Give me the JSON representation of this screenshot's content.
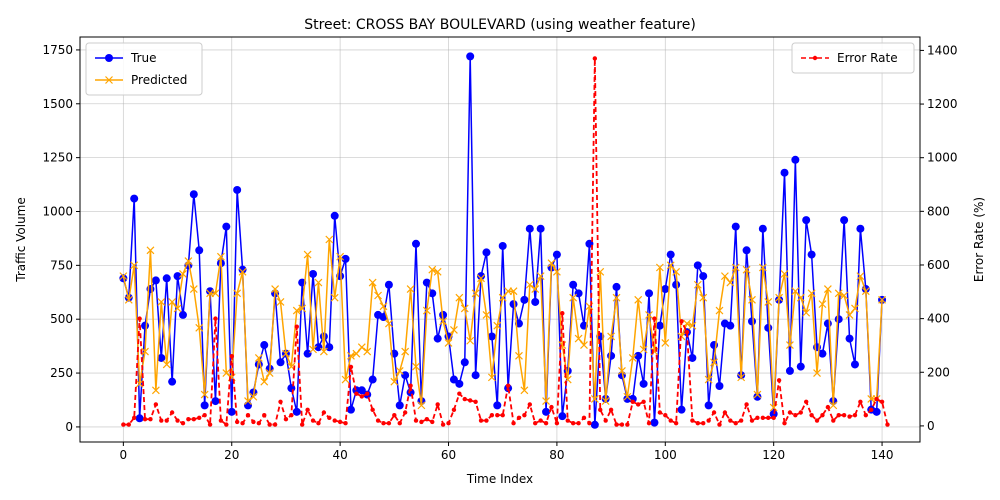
{
  "chart_data": {
    "type": "line",
    "title": "Street: CROSS BAY BOULEVARD (using weather feature)",
    "xlabel": "Time Index",
    "ylabel_left": "Traffic Volume",
    "ylabel_right": "Error Rate (%)",
    "xlim": [
      -8,
      147
    ],
    "ylim_left": [
      -70,
      1810
    ],
    "ylim_right": [
      -60,
      1450
    ],
    "x_ticks": [
      0,
      20,
      40,
      60,
      80,
      100,
      120,
      140
    ],
    "y_ticks_left": [
      0,
      250,
      500,
      750,
      1000,
      1250,
      1500,
      1750
    ],
    "y_ticks_right": [
      0,
      200,
      400,
      600,
      800,
      1000,
      1200,
      1400
    ],
    "grid": true,
    "legend_left_position": "top-left",
    "legend_right_position": "top-right",
    "series": [
      {
        "name": "True",
        "axis": "left",
        "color": "#0000ff",
        "marker": "circle",
        "line": "solid",
        "values": [
          690,
          600,
          1060,
          40,
          470,
          640,
          680,
          320,
          690,
          210,
          700,
          520,
          750,
          1080,
          820,
          100,
          630,
          120,
          760,
          930,
          70,
          1100,
          730,
          100,
          160,
          290,
          380,
          270,
          620,
          300,
          340,
          180,
          70,
          670,
          340,
          710,
          370,
          420,
          370,
          980,
          700,
          780,
          80,
          170,
          170,
          150,
          220,
          520,
          510,
          660,
          340,
          100,
          240,
          160,
          850,
          120,
          670,
          620,
          410,
          520,
          420,
          220,
          200,
          300,
          1720,
          240,
          700,
          810,
          420,
          100,
          840,
          180,
          570,
          480,
          590,
          920,
          580,
          920,
          70,
          740,
          800,
          50,
          260,
          660,
          620,
          470,
          850,
          10,
          420,
          130,
          330,
          650,
          240,
          130,
          130,
          330,
          200,
          620,
          20,
          470,
          640,
          800,
          660,
          80,
          440,
          320,
          750,
          700,
          100,
          380,
          190,
          480,
          470,
          930,
          240,
          820,
          490,
          140,
          920,
          460,
          60,
          590,
          1180,
          260,
          1240,
          280,
          960,
          800,
          370,
          340,
          480,
          120,
          500,
          960,
          410,
          290,
          920,
          640,
          80,
          70,
          590
        ]
      },
      {
        "name": "Predicted",
        "axis": "left",
        "color": "#ffa500",
        "marker": "x",
        "line": "solid",
        "values": [
          700,
          590,
          750,
          200,
          350,
          820,
          170,
          580,
          290,
          580,
          550,
          710,
          770,
          640,
          460,
          150,
          620,
          620,
          790,
          250,
          230,
          620,
          720,
          120,
          140,
          320,
          210,
          250,
          640,
          580,
          340,
          280,
          540,
          550,
          800,
          360,
          670,
          350,
          870,
          600,
          790,
          220,
          330,
          340,
          370,
          350,
          670,
          610,
          560,
          480,
          210,
          260,
          350,
          640,
          280,
          100,
          540,
          730,
          720,
          490,
          390,
          450,
          600,
          550,
          400,
          620,
          690,
          520,
          230,
          470,
          600,
          630,
          630,
          330,
          170,
          660,
          640,
          700,
          120,
          760,
          720,
          380,
          220,
          600,
          410,
          380,
          560,
          130,
          720,
          120,
          420,
          600,
          260,
          140,
          320,
          590,
          360,
          520,
          350,
          740,
          390,
          750,
          720,
          420,
          480,
          470,
          660,
          600,
          220,
          300,
          540,
          700,
          670,
          740,
          230,
          730,
          590,
          150,
          740,
          580,
          90,
          600,
          710,
          380,
          630,
          600,
          530,
          620,
          250,
          570,
          640,
          100,
          620,
          610,
          520,
          550,
          700,
          630,
          130,
          130,
          590
        ]
      },
      {
        "name": "Error Rate",
        "axis": "right",
        "color": "#ff0000",
        "marker": "dot",
        "line": "dashed",
        "values": [
          5,
          5,
          30,
          400,
          25,
          25,
          80,
          20,
          20,
          50,
          20,
          10,
          25,
          25,
          30,
          40,
          5,
          400,
          20,
          5,
          260,
          15,
          10,
          40,
          15,
          10,
          40,
          5,
          5,
          90,
          25,
          40,
          370,
          5,
          60,
          20,
          10,
          50,
          30,
          20,
          15,
          10,
          220,
          120,
          110,
          120,
          60,
          20,
          10,
          10,
          40,
          10,
          50,
          150,
          20,
          15,
          25,
          15,
          80,
          5,
          10,
          60,
          120,
          100,
          95,
          90,
          20,
          20,
          40,
          40,
          40,
          150,
          10,
          30,
          40,
          80,
          10,
          20,
          10,
          70,
          10,
          420,
          20,
          10,
          10,
          30,
          10,
          1370,
          60,
          20,
          60,
          5,
          5,
          5,
          90,
          80,
          90,
          10,
          400,
          50,
          40,
          20,
          10,
          390,
          350,
          20,
          10,
          10,
          20,
          50,
          5,
          50,
          20,
          10,
          20,
          80,
          20,
          30,
          30,
          30,
          30,
          170,
          10,
          50,
          40,
          50,
          90,
          40,
          20,
          40,
          70,
          20,
          40,
          40,
          35,
          40,
          90,
          40,
          60,
          100,
          90,
          5
        ]
      }
    ]
  }
}
